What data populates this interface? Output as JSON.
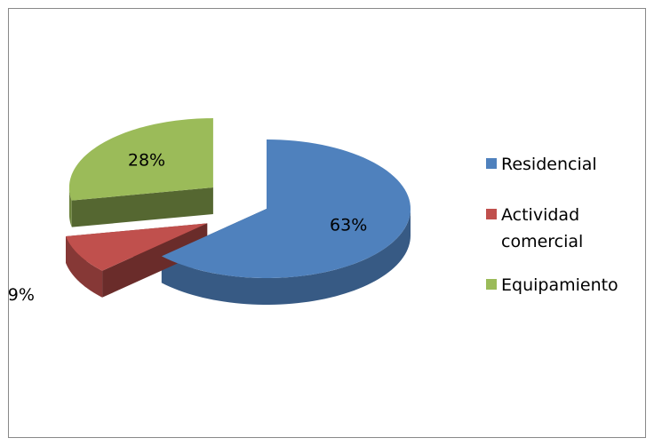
{
  "chart_data": {
    "type": "pie3d",
    "categories": [
      "Residencial",
      "Actividad comercial",
      "Equipamiento"
    ],
    "values": [
      63,
      9,
      28
    ],
    "value_labels": [
      "63%",
      "9%",
      "28%"
    ],
    "colors": [
      "#4f81bd",
      "#c0504d",
      "#9bbb59"
    ],
    "legend": "right"
  }
}
